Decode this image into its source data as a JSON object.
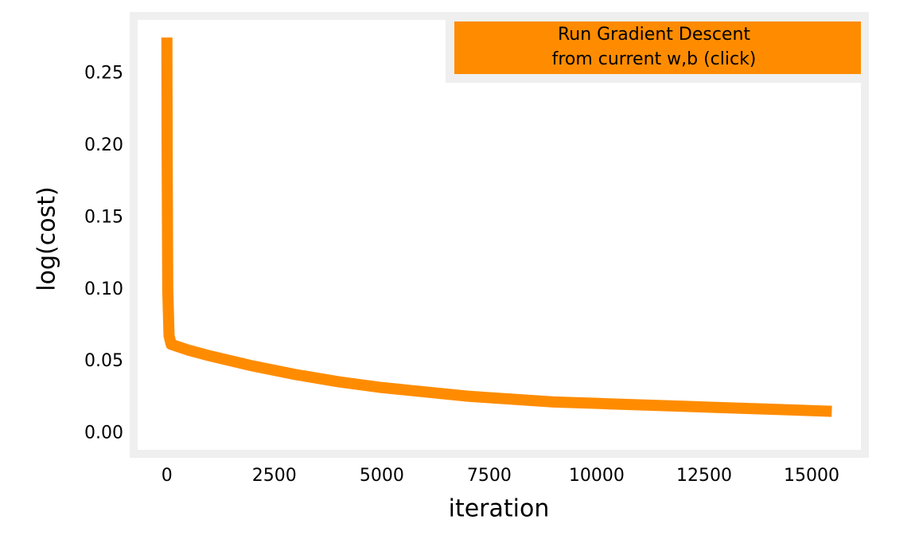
{
  "chart_data": {
    "type": "line",
    "x_label": "iteration",
    "y_label": "log(cost)",
    "x": [
      0,
      5,
      20,
      50,
      100,
      500,
      1000,
      2000,
      3000,
      4000,
      5000,
      6000,
      7000,
      8000,
      9000,
      10000,
      11000,
      12000,
      13000,
      14000,
      15000,
      15470
    ],
    "series": [
      {
        "color": "#ff8c00",
        "values": [
          0.275,
          0.2,
          0.1,
          0.068,
          0.062,
          0.058,
          0.054,
          0.047,
          0.041,
          0.036,
          0.032,
          0.029,
          0.026,
          0.024,
          0.022,
          0.021,
          0.02,
          0.019,
          0.018,
          0.017,
          0.016,
          0.0155
        ]
      }
    ],
    "xlim": [
      -773,
      16240
    ],
    "ylim": [
      -0.014,
      0.29
    ],
    "xticks": [
      0,
      2500,
      5000,
      7500,
      10000,
      12500,
      15000
    ],
    "yticks": [
      {
        "value": 0,
        "label": "0.00"
      },
      0.05,
      {
        "value": 0.1,
        "label": "0.10"
      },
      0.15,
      {
        "value": 0.2,
        "label": "0.20"
      },
      0.25
    ],
    "grid": false
  },
  "button": {
    "lines": [
      "Run Gradient Descent",
      "from current w,b (click)"
    ],
    "color": "#ff8c00"
  }
}
